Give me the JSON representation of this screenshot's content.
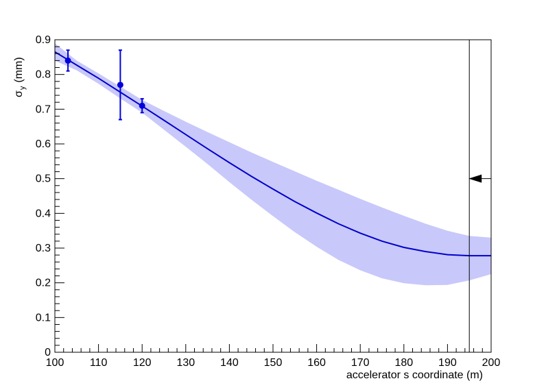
{
  "chart_data": {
    "type": "line",
    "xlabel": "accelerator s coordinate (m)",
    "ylabel_main": "σ",
    "ylabel_sub": "y",
    "ylabel_unit": "(mm)",
    "xlim": [
      100,
      200
    ],
    "ylim": [
      0,
      0.9
    ],
    "x_ticks": [
      100,
      110,
      120,
      130,
      140,
      150,
      160,
      170,
      180,
      190,
      200
    ],
    "x_tick_labels": [
      "100",
      "110",
      "120",
      "130",
      "140",
      "150",
      "160",
      "170",
      "180",
      "190",
      "200"
    ],
    "y_ticks": [
      0,
      0.1,
      0.2,
      0.3,
      0.4,
      0.5,
      0.6,
      0.7,
      0.8,
      0.9
    ],
    "y_tick_labels": [
      "0",
      "0.1",
      "0.2",
      "0.3",
      "0.4",
      "0.5",
      "0.6",
      "0.7",
      "0.8",
      "0.9"
    ],
    "grid": false,
    "series": [
      {
        "kind": "measurements",
        "color": "#0000dd",
        "points": [
          {
            "x": 103,
            "y": 0.84,
            "err": 0.03
          },
          {
            "x": 115,
            "y": 0.77,
            "err": 0.1
          },
          {
            "x": 120,
            "y": 0.71,
            "err": 0.02
          }
        ]
      },
      {
        "kind": "fit",
        "color": "#0000cc",
        "x": [
          100,
          105,
          110,
          115,
          120,
          125,
          130,
          135,
          140,
          145,
          150,
          155,
          160,
          165,
          170,
          175,
          180,
          185,
          190,
          195,
          200
        ],
        "y": [
          0.865,
          0.827,
          0.789,
          0.749,
          0.709,
          0.668,
          0.627,
          0.586,
          0.546,
          0.507,
          0.47,
          0.434,
          0.401,
          0.37,
          0.343,
          0.32,
          0.302,
          0.29,
          0.281,
          0.278,
          0.278
        ]
      },
      {
        "kind": "band",
        "color": "#c8c8fa",
        "x": [
          100,
          105,
          110,
          115,
          120,
          125,
          130,
          135,
          140,
          145,
          150,
          155,
          160,
          165,
          170,
          175,
          180,
          185,
          190,
          195,
          200
        ],
        "upper": [
          0.89,
          0.84,
          0.803,
          0.765,
          0.727,
          0.695,
          0.664,
          0.634,
          0.605,
          0.576,
          0.548,
          0.521,
          0.494,
          0.468,
          0.442,
          0.417,
          0.393,
          0.37,
          0.35,
          0.335,
          0.33
        ],
        "lower": [
          0.84,
          0.812,
          0.773,
          0.731,
          0.69,
          0.641,
          0.592,
          0.542,
          0.49,
          0.44,
          0.392,
          0.346,
          0.304,
          0.266,
          0.236,
          0.213,
          0.199,
          0.193,
          0.194,
          0.207,
          0.225
        ]
      }
    ],
    "marker": {
      "x": 195,
      "y": 0.5,
      "direction": "left"
    }
  }
}
